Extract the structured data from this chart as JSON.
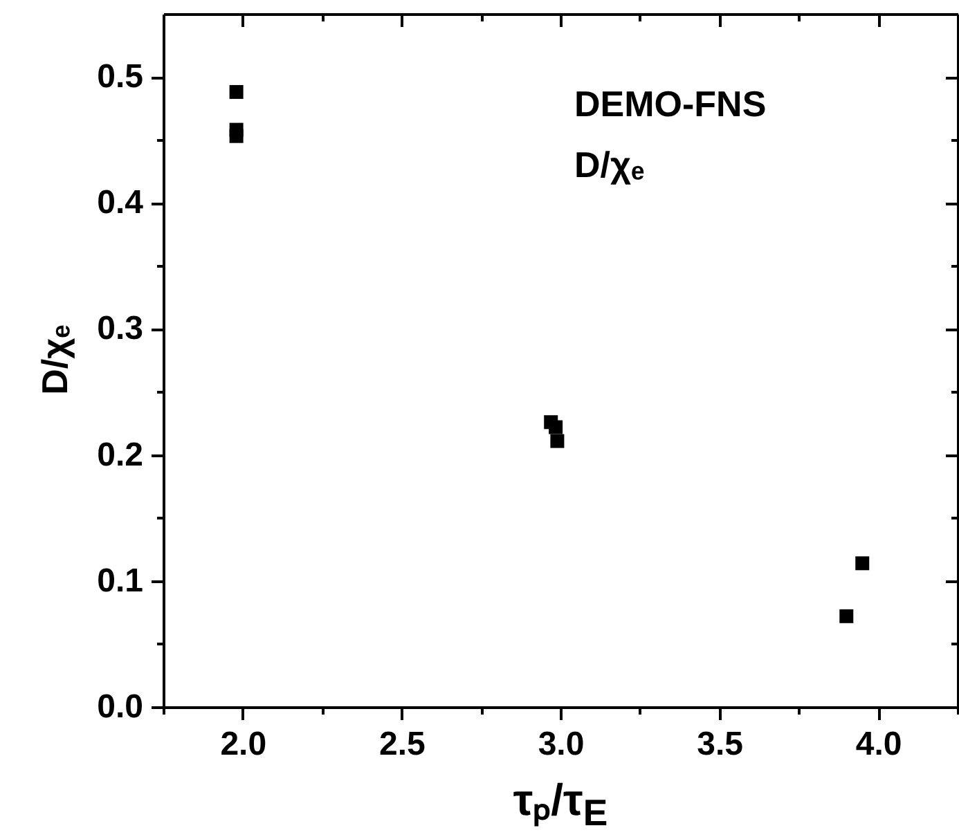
{
  "chart_data": {
    "type": "scatter",
    "xlabel": "τₚ/τ$_{E}$",
    "ylabel": "D/χₑ",
    "annotations": [
      "DEMO-FNS",
      "D/χₑ"
    ],
    "series": [
      {
        "color": "#000000",
        "x": [
          1.98,
          1.98,
          1.98,
          2.97,
          2.985,
          2.99,
          3.9,
          3.95
        ],
        "values": [
          0.488,
          0.458,
          0.453,
          0.226,
          0.222,
          0.211,
          0.072,
          0.114
        ]
      }
    ],
    "marker": "square",
    "grid": false,
    "xlim": [
      1.75,
      4.25
    ],
    "ylim": [
      0,
      0.55
    ],
    "xticks": [
      {
        "value": 1.75,
        "label": null
      },
      {
        "value": 2,
        "label": "2.0"
      },
      {
        "value": 2.25,
        "label": null
      },
      2.5,
      {
        "value": 2.75,
        "label": null
      },
      {
        "value": 3,
        "label": "3.0"
      },
      {
        "value": 3.25,
        "label": null
      },
      3.5,
      {
        "value": 3.75,
        "label": null
      },
      {
        "value": 4,
        "label": "4.0"
      },
      {
        "value": 4.25,
        "label": null
      }
    ],
    "yticks": [
      {
        "value": 0,
        "label": "0.0"
      },
      {
        "value": 0.05,
        "label": null
      },
      0.1,
      {
        "value": 0.15,
        "label": null
      },
      0.2,
      {
        "value": 0.25,
        "label": null
      },
      0.3,
      {
        "value": 0.35,
        "label": null
      },
      0.4,
      {
        "value": 0.45,
        "label": null
      },
      0.5
    ]
  }
}
